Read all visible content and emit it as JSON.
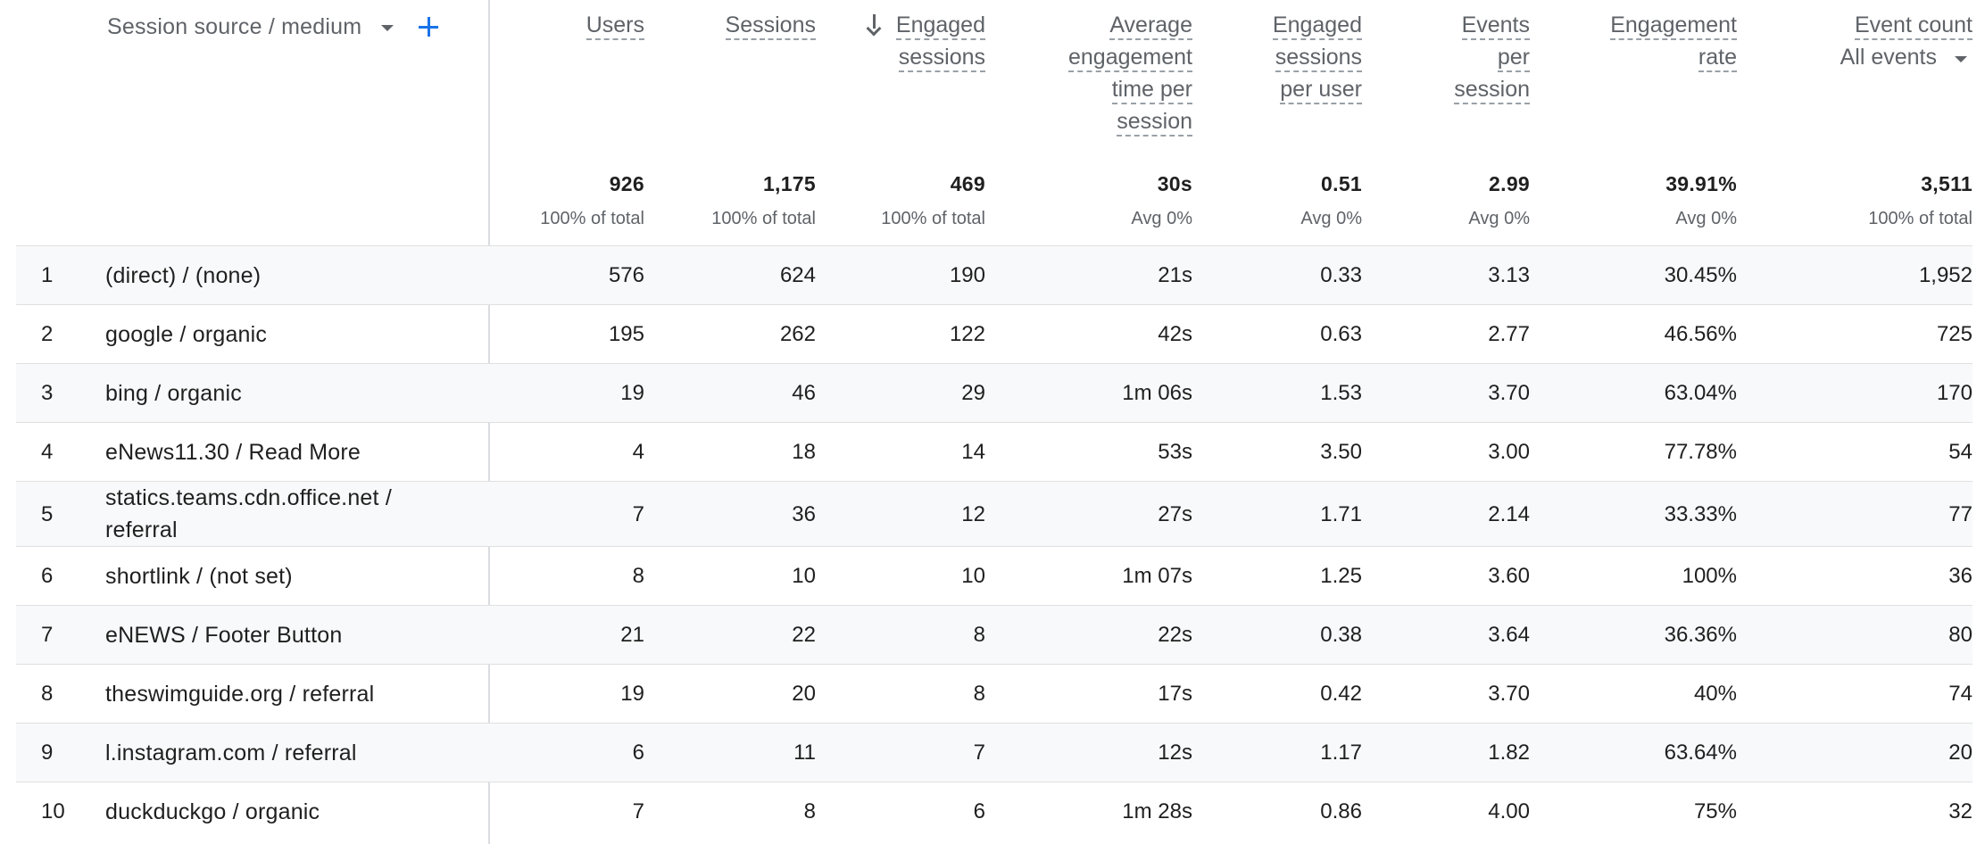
{
  "dimension_header": {
    "label": "Session source / medium",
    "dropdown_icon": "caret-down-icon",
    "add_icon": "plus-icon"
  },
  "metrics": [
    {
      "key": "users",
      "label_lines": [
        "Users"
      ]
    },
    {
      "key": "sessions",
      "label_lines": [
        "Sessions"
      ]
    },
    {
      "key": "engaged_sessions",
      "label_lines": [
        "Engaged",
        "sessions"
      ],
      "sorted": "descending"
    },
    {
      "key": "avg_engagement_time",
      "label_lines": [
        "Average",
        "engagement",
        "time per",
        "session"
      ]
    },
    {
      "key": "engaged_per_user",
      "label_lines": [
        "Engaged",
        "sessions",
        "per user"
      ]
    },
    {
      "key": "events_per_session",
      "label_lines": [
        "Events",
        "per",
        "session"
      ]
    },
    {
      "key": "engagement_rate",
      "label_lines": [
        "Engagement",
        "rate"
      ]
    },
    {
      "key": "event_count",
      "label_lines": [
        "Event count"
      ],
      "selector": "All events"
    }
  ],
  "totals": [
    {
      "value": "926",
      "sub": "100% of total"
    },
    {
      "value": "1,175",
      "sub": "100% of total"
    },
    {
      "value": "469",
      "sub": "100% of total"
    },
    {
      "value": "30s",
      "sub": "Avg 0%"
    },
    {
      "value": "0.51",
      "sub": "Avg 0%"
    },
    {
      "value": "2.99",
      "sub": "Avg 0%"
    },
    {
      "value": "39.91%",
      "sub": "Avg 0%"
    },
    {
      "value": "3,511",
      "sub": "100% of total"
    }
  ],
  "rows": [
    {
      "index": "1",
      "dimension": [
        "(direct) / (none)"
      ],
      "values": [
        "576",
        "624",
        "190",
        "21s",
        "0.33",
        "3.13",
        "30.45%",
        "1,952"
      ]
    },
    {
      "index": "2",
      "dimension": [
        "google / organic"
      ],
      "values": [
        "195",
        "262",
        "122",
        "42s",
        "0.63",
        "2.77",
        "46.56%",
        "725"
      ]
    },
    {
      "index": "3",
      "dimension": [
        "bing / organic"
      ],
      "values": [
        "19",
        "46",
        "29",
        "1m 06s",
        "1.53",
        "3.70",
        "63.04%",
        "170"
      ]
    },
    {
      "index": "4",
      "dimension": [
        "eNews11.30 / Read More"
      ],
      "values": [
        "4",
        "18",
        "14",
        "53s",
        "3.50",
        "3.00",
        "77.78%",
        "54"
      ]
    },
    {
      "index": "5",
      "dimension": [
        "statics.teams.cdn.office.net /",
        "referral"
      ],
      "values": [
        "7",
        "36",
        "12",
        "27s",
        "1.71",
        "2.14",
        "33.33%",
        "77"
      ]
    },
    {
      "index": "6",
      "dimension": [
        "shortlink / (not set)"
      ],
      "values": [
        "8",
        "10",
        "10",
        "1m 07s",
        "1.25",
        "3.60",
        "100%",
        "36"
      ]
    },
    {
      "index": "7",
      "dimension": [
        "eNEWS / Footer Button"
      ],
      "values": [
        "21",
        "22",
        "8",
        "22s",
        "0.38",
        "3.64",
        "36.36%",
        "80"
      ]
    },
    {
      "index": "8",
      "dimension": [
        "theswimguide.org / referral"
      ],
      "values": [
        "19",
        "20",
        "8",
        "17s",
        "0.42",
        "3.70",
        "40%",
        "74"
      ]
    },
    {
      "index": "9",
      "dimension": [
        "l.instagram.com / referral"
      ],
      "values": [
        "6",
        "11",
        "7",
        "12s",
        "1.17",
        "1.82",
        "63.64%",
        "20"
      ]
    },
    {
      "index": "10",
      "dimension": [
        "duckduckgo / organic"
      ],
      "values": [
        "7",
        "8",
        "6",
        "1m 28s",
        "0.86",
        "4.00",
        "75%",
        "32"
      ]
    }
  ],
  "colors": {
    "accent": "#1a73e8",
    "header_text": "#5f6368",
    "row_stripe": "#f8f9fa",
    "divider": "#dadce0"
  }
}
